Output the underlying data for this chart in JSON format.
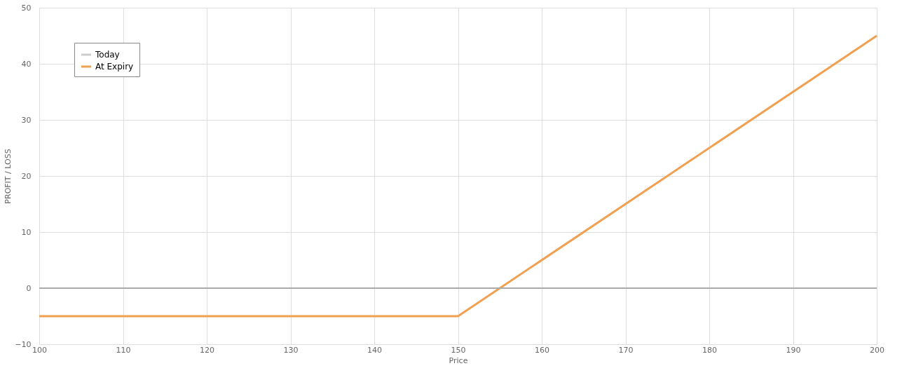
{
  "chart_data": {
    "type": "line",
    "xlabel": "Price",
    "ylabel": "PROFIT / LOSS",
    "x": [
      100,
      150,
      200
    ],
    "series": [
      {
        "name": "Today",
        "color": "#cccccc",
        "values": [
          null,
          null,
          null
        ]
      },
      {
        "name": "At Expiry",
        "color": "#f0a050",
        "values": [
          -5,
          -5,
          45
        ]
      }
    ],
    "xlim": [
      100,
      200
    ],
    "xticks": [
      100,
      110,
      120,
      130,
      140,
      150,
      160,
      170,
      180,
      190,
      200
    ],
    "ylim": [
      -10,
      50
    ],
    "yticks": [
      -10,
      0,
      10,
      20,
      30,
      40,
      50
    ],
    "ref_lines": [
      {
        "axis": "y",
        "value": 0,
        "color": "#aaaaaa"
      }
    ],
    "grid": true,
    "legend": "top left",
    "marker": "none",
    "line_style": "solid"
  }
}
